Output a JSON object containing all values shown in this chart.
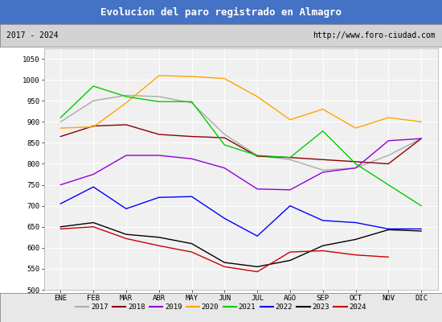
{
  "title": "Evolucion del paro registrado en Almagro",
  "subtitle_left": "2017 - 2024",
  "subtitle_right": "http://www.foro-ciudad.com",
  "months": [
    "ENE",
    "FEB",
    "MAR",
    "ABR",
    "MAY",
    "JUN",
    "JUL",
    "AGO",
    "SEP",
    "OCT",
    "NOV",
    "DIC"
  ],
  "ylim": [
    500,
    1075
  ],
  "yticks": [
    500,
    550,
    600,
    650,
    700,
    750,
    800,
    850,
    900,
    950,
    1000,
    1050
  ],
  "series": {
    "2017": {
      "color": "#aaaaaa",
      "values": [
        900,
        950,
        963,
        960,
        945,
        870,
        820,
        810,
        785,
        790,
        820,
        860
      ]
    },
    "2018": {
      "color": "#8b0000",
      "values": [
        865,
        890,
        893,
        870,
        865,
        862,
        818,
        815,
        810,
        805,
        800,
        860
      ]
    },
    "2019": {
      "color": "#9400d3",
      "values": [
        750,
        775,
        820,
        820,
        812,
        790,
        740,
        738,
        780,
        790,
        855,
        860
      ]
    },
    "2020": {
      "color": "#ffa500",
      "values": [
        885,
        888,
        945,
        1010,
        1008,
        1003,
        960,
        905,
        930,
        885,
        910,
        900
      ]
    },
    "2021": {
      "color": "#00cc00",
      "values": [
        910,
        985,
        960,
        948,
        948,
        845,
        820,
        815,
        878,
        800,
        750,
        700
      ]
    },
    "2022": {
      "color": "#0000ff",
      "values": [
        705,
        745,
        693,
        720,
        722,
        670,
        628,
        700,
        665,
        660,
        645,
        645
      ]
    },
    "2023": {
      "color": "#000000",
      "values": [
        650,
        660,
        632,
        625,
        610,
        565,
        555,
        570,
        605,
        620,
        643,
        640
      ]
    },
    "2024": {
      "color": "#cc0000",
      "values": [
        645,
        650,
        622,
        605,
        590,
        555,
        543,
        590,
        593,
        583,
        578,
        null
      ]
    }
  },
  "title_bg_color": "#4472c4",
  "title_text_color": "#ffffff",
  "subtitle_bg_color": "#d3d3d3",
  "plot_bg_color": "#f0f0f0",
  "grid_color": "#ffffff",
  "legend_bg_color": "#e8e8e8",
  "title_fontsize": 9,
  "subtitle_fontsize": 7,
  "tick_fontsize": 6.5,
  "legend_fontsize": 6.5
}
